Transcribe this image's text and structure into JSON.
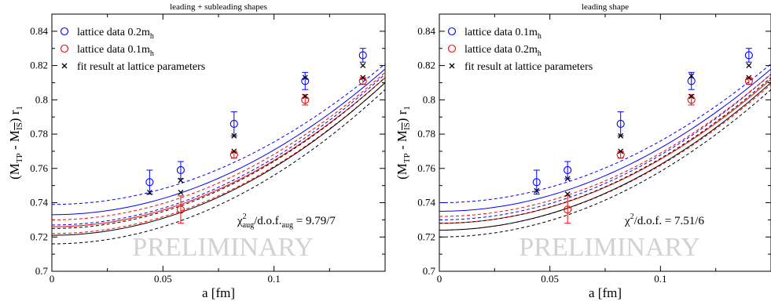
{
  "chart_data": [
    {
      "type": "scatter",
      "title": "leading + subleading shapes",
      "xlabel": "a [fm]",
      "ylabel": {
        "main": "(M",
        "s1": "TP",
        "mid": " - M",
        "s2": "IS",
        "end": ") r",
        "s3": "1"
      },
      "xlim": [
        0,
        0.15
      ],
      "ylim": [
        0.7,
        0.85
      ],
      "xticks": [
        0,
        0.05,
        0.1
      ],
      "xtick_labels": [
        "0",
        "0.05",
        "0.1"
      ],
      "yticks": [
        0.7,
        0.72,
        0.74,
        0.76,
        0.78,
        0.8,
        0.82,
        0.84
      ],
      "ytick_labels": [
        "0.7",
        "0.72",
        "0.74",
        "0.76",
        "0.78",
        "0.8",
        "0.82",
        "0.84"
      ],
      "legend": "top-left",
      "legend_entries": [
        {
          "text": "lattice data 0.2m",
          "sub": "h",
          "color": "#0000ff",
          "marker": "circle"
        },
        {
          "text": "lattice data 0.1m",
          "sub": "h",
          "color": "#ff0000",
          "marker": "circle"
        },
        {
          "text": "fit result at  lattice parameters",
          "sub": "",
          "color": "#000000",
          "marker": "x"
        }
      ],
      "annotation": {
        "a": "χ",
        "b": "2",
        "c": "aug",
        "d": "/d.o.f.",
        "e": "aug",
        "f": " = 9.79/7"
      },
      "watermark": "PRELIMINARY",
      "series": [
        {
          "name": "lattice data 0.2m_h",
          "color": "#0000ff",
          "marker": "circle",
          "points": [
            {
              "x": 0.044,
              "y": 0.752,
              "err": 0.007
            },
            {
              "x": 0.058,
              "y": 0.759,
              "err": 0.005
            },
            {
              "x": 0.082,
              "y": 0.786,
              "err": 0.007
            },
            {
              "x": 0.114,
              "y": 0.811,
              "err": 0.005
            },
            {
              "x": 0.14,
              "y": 0.826,
              "err": 0.004
            }
          ]
        },
        {
          "name": "lattice data 0.1m_h",
          "color": "#ff0000",
          "marker": "circle",
          "points": [
            {
              "x": 0.058,
              "y": 0.736,
              "err": 0.008
            },
            {
              "x": 0.082,
              "y": 0.768,
              "err": 0.002
            },
            {
              "x": 0.114,
              "y": 0.8,
              "err": 0.003
            },
            {
              "x": 0.14,
              "y": 0.811,
              "err": 0.002
            }
          ]
        },
        {
          "name": "fit result at lattice parameters",
          "color": "#000000",
          "marker": "x",
          "points": [
            {
              "x": 0.044,
              "y": 0.746
            },
            {
              "x": 0.058,
              "y": 0.753
            },
            {
              "x": 0.058,
              "y": 0.746
            },
            {
              "x": 0.082,
              "y": 0.779
            },
            {
              "x": 0.082,
              "y": 0.77
            },
            {
              "x": 0.114,
              "y": 0.813
            },
            {
              "x": 0.114,
              "y": 0.802
            },
            {
              "x": 0.14,
              "y": 0.82
            },
            {
              "x": 0.14,
              "y": 0.813
            }
          ]
        }
      ],
      "fit_curves": [
        {
          "color": "#0000ff",
          "style": "solid",
          "y0": 0.733,
          "y_end": 0.818
        },
        {
          "color": "#0000ff",
          "style": "dashed",
          "y0": 0.739,
          "y_end": 0.821
        },
        {
          "color": "#0000ff",
          "style": "dashed",
          "y0": 0.727,
          "y_end": 0.815
        },
        {
          "color": "#ff0000",
          "style": "solid",
          "y0": 0.726,
          "y_end": 0.813
        },
        {
          "color": "#ff0000",
          "style": "dashed",
          "y0": 0.73,
          "y_end": 0.816
        },
        {
          "color": "#ff0000",
          "style": "dashed",
          "y0": 0.722,
          "y_end": 0.81
        },
        {
          "color": "#000000",
          "style": "solid",
          "y0": 0.721,
          "y_end": 0.81
        },
        {
          "color": "#000000",
          "style": "dashed",
          "y0": 0.725,
          "y_end": 0.813
        },
        {
          "color": "#000000",
          "style": "dashed",
          "y0": 0.716,
          "y_end": 0.806
        }
      ]
    },
    {
      "type": "scatter",
      "title": "leading shape",
      "xlabel": "a [fm]",
      "ylabel": {
        "main": "(M",
        "s1": "TP",
        "mid": " - M",
        "s2": "IS",
        "end": ") r",
        "s3": "1"
      },
      "xlim": [
        0,
        0.15
      ],
      "ylim": [
        0.7,
        0.85
      ],
      "xticks": [
        0,
        0.05,
        0.1
      ],
      "xtick_labels": [
        "0",
        "0.05",
        "0.1"
      ],
      "yticks": [
        0.7,
        0.72,
        0.74,
        0.76,
        0.78,
        0.8,
        0.82,
        0.84
      ],
      "ytick_labels": [
        "0.7",
        "0.72",
        "0.74",
        "0.76",
        "0.78",
        "0.8",
        "0.82",
        "0.84"
      ],
      "legend": "top-left",
      "legend_entries": [
        {
          "text": "lattice data 0.1m",
          "sub": "h",
          "color": "#0000ff",
          "marker": "circle"
        },
        {
          "text": "lattice data 0.2m",
          "sub": "h",
          "color": "#ff0000",
          "marker": "circle"
        },
        {
          "text": "fit result at  lattice parameters",
          "sub": "",
          "color": "#000000",
          "marker": "x"
        }
      ],
      "annotation": {
        "a": "χ",
        "b": "2",
        "c": "",
        "d": "/d.o.f.",
        "e": "",
        "f": " = 7.51/6"
      },
      "watermark": "PRELIMINARY",
      "series": [
        {
          "name": "lattice data 0.1m_h",
          "color": "#0000ff",
          "marker": "circle",
          "points": [
            {
              "x": 0.044,
              "y": 0.752,
              "err": 0.007
            },
            {
              "x": 0.058,
              "y": 0.759,
              "err": 0.005
            },
            {
              "x": 0.082,
              "y": 0.786,
              "err": 0.007
            },
            {
              "x": 0.114,
              "y": 0.811,
              "err": 0.005
            },
            {
              "x": 0.14,
              "y": 0.826,
              "err": 0.004
            }
          ]
        },
        {
          "name": "lattice data 0.2m_h",
          "color": "#ff0000",
          "marker": "circle",
          "points": [
            {
              "x": 0.058,
              "y": 0.736,
              "err": 0.008
            },
            {
              "x": 0.082,
              "y": 0.768,
              "err": 0.002
            },
            {
              "x": 0.114,
              "y": 0.8,
              "err": 0.003
            },
            {
              "x": 0.14,
              "y": 0.811,
              "err": 0.002
            }
          ]
        },
        {
          "name": "fit result at lattice parameters",
          "color": "#000000",
          "marker": "x",
          "points": [
            {
              "x": 0.044,
              "y": 0.747
            },
            {
              "x": 0.058,
              "y": 0.754
            },
            {
              "x": 0.058,
              "y": 0.745
            },
            {
              "x": 0.082,
              "y": 0.779
            },
            {
              "x": 0.082,
              "y": 0.77
            },
            {
              "x": 0.114,
              "y": 0.814
            },
            {
              "x": 0.114,
              "y": 0.802
            },
            {
              "x": 0.14,
              "y": 0.82
            },
            {
              "x": 0.14,
              "y": 0.813
            }
          ]
        }
      ],
      "fit_curves": [
        {
          "color": "#0000ff",
          "style": "solid",
          "y0": 0.735,
          "y_end": 0.818
        },
        {
          "color": "#0000ff",
          "style": "dashed",
          "y0": 0.74,
          "y_end": 0.821
        },
        {
          "color": "#0000ff",
          "style": "dashed",
          "y0": 0.73,
          "y_end": 0.815
        },
        {
          "color": "#ff0000",
          "style": "solid",
          "y0": 0.728,
          "y_end": 0.812
        },
        {
          "color": "#ff0000",
          "style": "dashed",
          "y0": 0.732,
          "y_end": 0.815
        },
        {
          "color": "#ff0000",
          "style": "dashed",
          "y0": 0.724,
          "y_end": 0.809
        },
        {
          "color": "#000000",
          "style": "solid",
          "y0": 0.724,
          "y_end": 0.81
        },
        {
          "color": "#000000",
          "style": "dashed",
          "y0": 0.728,
          "y_end": 0.813
        },
        {
          "color": "#000000",
          "style": "dashed",
          "y0": 0.72,
          "y_end": 0.806
        }
      ]
    }
  ]
}
